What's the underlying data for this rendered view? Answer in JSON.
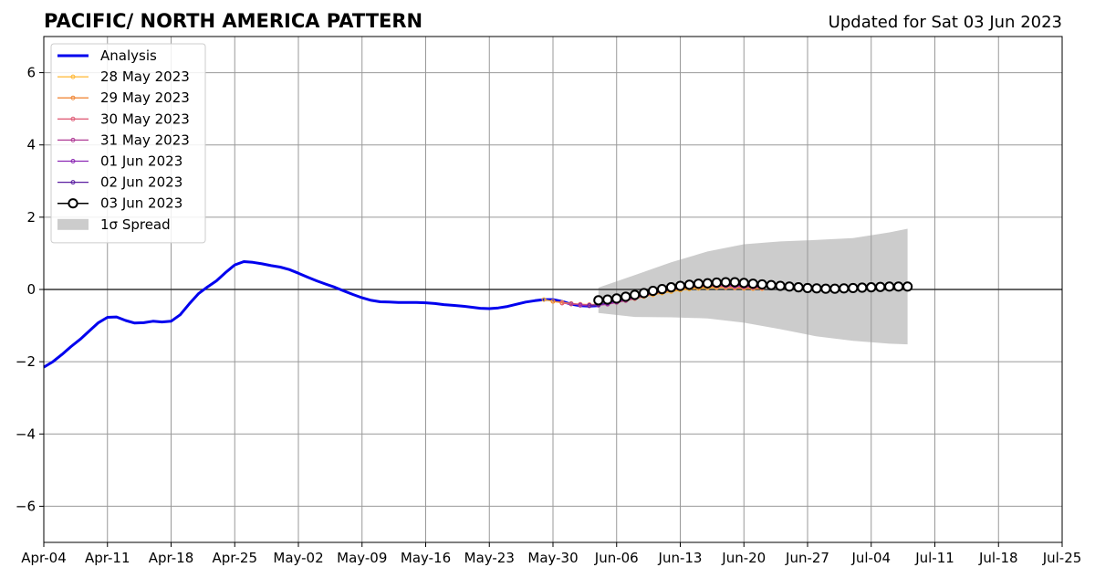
{
  "chart_data": {
    "type": "line",
    "title": "PACIFIC/ NORTH AMERICA PATTERN",
    "subtitle": "Updated for Sat 03 Jun 2023",
    "xlabel": "",
    "ylabel": "",
    "x_start": "2023-04-04",
    "x_end": "2023-07-25",
    "ylim": [
      -7,
      7
    ],
    "x_ticks": [
      "Apr-04",
      "Apr-11",
      "Apr-18",
      "Apr-25",
      "May-02",
      "May-09",
      "May-16",
      "May-23",
      "May-30",
      "Jun-06",
      "Jun-13",
      "Jun-20",
      "Jun-27",
      "Jul-04",
      "Jul-11",
      "Jul-18",
      "Jul-25"
    ],
    "y_ticks": [
      -6,
      -4,
      -2,
      0,
      2,
      4,
      6
    ],
    "grid": true,
    "legend_position": "top-left",
    "series": [
      {
        "name": "Analysis",
        "color": "#0000ee",
        "style": "thick-line",
        "x_start": "2023-04-04",
        "values": [
          -2.15,
          -2.0,
          -1.8,
          -1.58,
          -1.38,
          -1.15,
          -0.92,
          -0.77,
          -0.76,
          -0.86,
          -0.93,
          -0.92,
          -0.88,
          -0.9,
          -0.88,
          -0.7,
          -0.4,
          -0.12,
          0.07,
          0.24,
          0.47,
          0.68,
          0.77,
          0.75,
          0.71,
          0.66,
          0.62,
          0.55,
          0.45,
          0.34,
          0.24,
          0.15,
          0.06,
          -0.04,
          -0.14,
          -0.23,
          -0.3,
          -0.34,
          -0.35,
          -0.36,
          -0.36,
          -0.36,
          -0.37,
          -0.39,
          -0.42,
          -0.44,
          -0.46,
          -0.49,
          -0.52,
          -0.53,
          -0.51,
          -0.47,
          -0.41,
          -0.35,
          -0.31,
          -0.28,
          -0.28,
          -0.33,
          -0.41,
          -0.45,
          -0.46,
          -0.45
        ]
      },
      {
        "name": "28 May 2023",
        "color": "#ffb732",
        "style": "forecast",
        "x_start": "2023-05-29",
        "values": [
          -0.28,
          -0.33,
          -0.37,
          -0.4,
          -0.42,
          -0.43,
          -0.42,
          -0.4,
          -0.36,
          -0.31,
          -0.26,
          -0.2,
          -0.15,
          -0.1,
          -0.06,
          -0.02,
          0.01,
          0.03,
          0.04,
          0.05,
          0.05,
          0.04,
          0.03,
          0.02,
          0.02
        ]
      },
      {
        "name": "29 May 2023",
        "color": "#f08a3c",
        "style": "forecast",
        "x_start": "2023-05-30",
        "values": [
          -0.33,
          -0.36,
          -0.39,
          -0.41,
          -0.42,
          -0.41,
          -0.39,
          -0.35,
          -0.3,
          -0.25,
          -0.19,
          -0.13,
          -0.08,
          -0.03,
          0.01,
          0.04,
          0.06,
          0.07,
          0.07,
          0.06,
          0.05,
          0.04,
          0.03,
          0.03
        ]
      },
      {
        "name": "30 May 2023",
        "color": "#e0607a",
        "style": "forecast",
        "x_start": "2023-05-31",
        "values": [
          -0.38,
          -0.4,
          -0.42,
          -0.43,
          -0.42,
          -0.39,
          -0.35,
          -0.3,
          -0.24,
          -0.18,
          -0.12,
          -0.06,
          -0.01,
          0.03,
          0.06,
          0.08,
          0.09,
          0.09,
          0.08,
          0.07,
          0.06,
          0.05,
          0.04
        ]
      },
      {
        "name": "31 May 2023",
        "color": "#b03c96",
        "style": "forecast",
        "x_start": "2023-06-01",
        "values": [
          -0.4,
          -0.43,
          -0.45,
          -0.44,
          -0.41,
          -0.36,
          -0.31,
          -0.25,
          -0.18,
          -0.11,
          -0.05,
          0.0,
          0.05,
          0.08,
          0.1,
          0.11,
          0.11,
          0.1,
          0.09,
          0.08,
          0.07,
          0.06
        ]
      },
      {
        "name": "01 Jun 2023",
        "color": "#8c28b4",
        "style": "forecast",
        "x_start": "2023-06-02",
        "values": [
          -0.44,
          -0.45,
          -0.43,
          -0.39,
          -0.34,
          -0.28,
          -0.21,
          -0.14,
          -0.07,
          -0.01,
          0.04,
          0.09,
          0.12,
          0.14,
          0.15,
          0.14,
          0.13,
          0.11,
          0.1,
          0.09,
          0.08
        ]
      },
      {
        "name": "02 Jun 2023",
        "color": "#5a1ea0",
        "style": "forecast",
        "x_start": "2023-06-03",
        "values": [
          -0.45,
          -0.42,
          -0.37,
          -0.31,
          -0.24,
          -0.17,
          -0.1,
          -0.03,
          0.03,
          0.08,
          0.12,
          0.15,
          0.17,
          0.18,
          0.17,
          0.16,
          0.14,
          0.12,
          0.11,
          0.1
        ]
      },
      {
        "name": "03 Jun 2023",
        "color": "#000000",
        "style": "open-circles",
        "x_start": "2023-06-04",
        "values": [
          -0.3,
          -0.28,
          -0.25,
          -0.2,
          -0.15,
          -0.1,
          -0.04,
          0.01,
          0.06,
          0.1,
          0.13,
          0.16,
          0.17,
          0.19,
          0.2,
          0.2,
          0.18,
          0.16,
          0.14,
          0.12,
          0.1,
          0.08,
          0.06,
          0.04,
          0.03,
          0.02,
          0.02,
          0.03,
          0.04,
          0.05,
          0.06,
          0.07,
          0.08,
          0.08,
          0.08
        ]
      }
    ],
    "spread": {
      "name": "1σ Spread",
      "color": "#cccccc",
      "x_start": "2023-06-04",
      "x_end": "2023-07-08",
      "dates": [
        "2023-06-04",
        "2023-06-08",
        "2023-06-12",
        "2023-06-16",
        "2023-06-20",
        "2023-06-24",
        "2023-06-28",
        "2023-07-02",
        "2023-07-06",
        "2023-07-08"
      ],
      "upper": [
        0.05,
        0.4,
        0.75,
        1.05,
        1.25,
        1.33,
        1.37,
        1.42,
        1.58,
        1.68
      ],
      "lower": [
        -0.65,
        -0.76,
        -0.77,
        -0.8,
        -0.92,
        -1.1,
        -1.3,
        -1.42,
        -1.5,
        -1.52
      ]
    }
  }
}
